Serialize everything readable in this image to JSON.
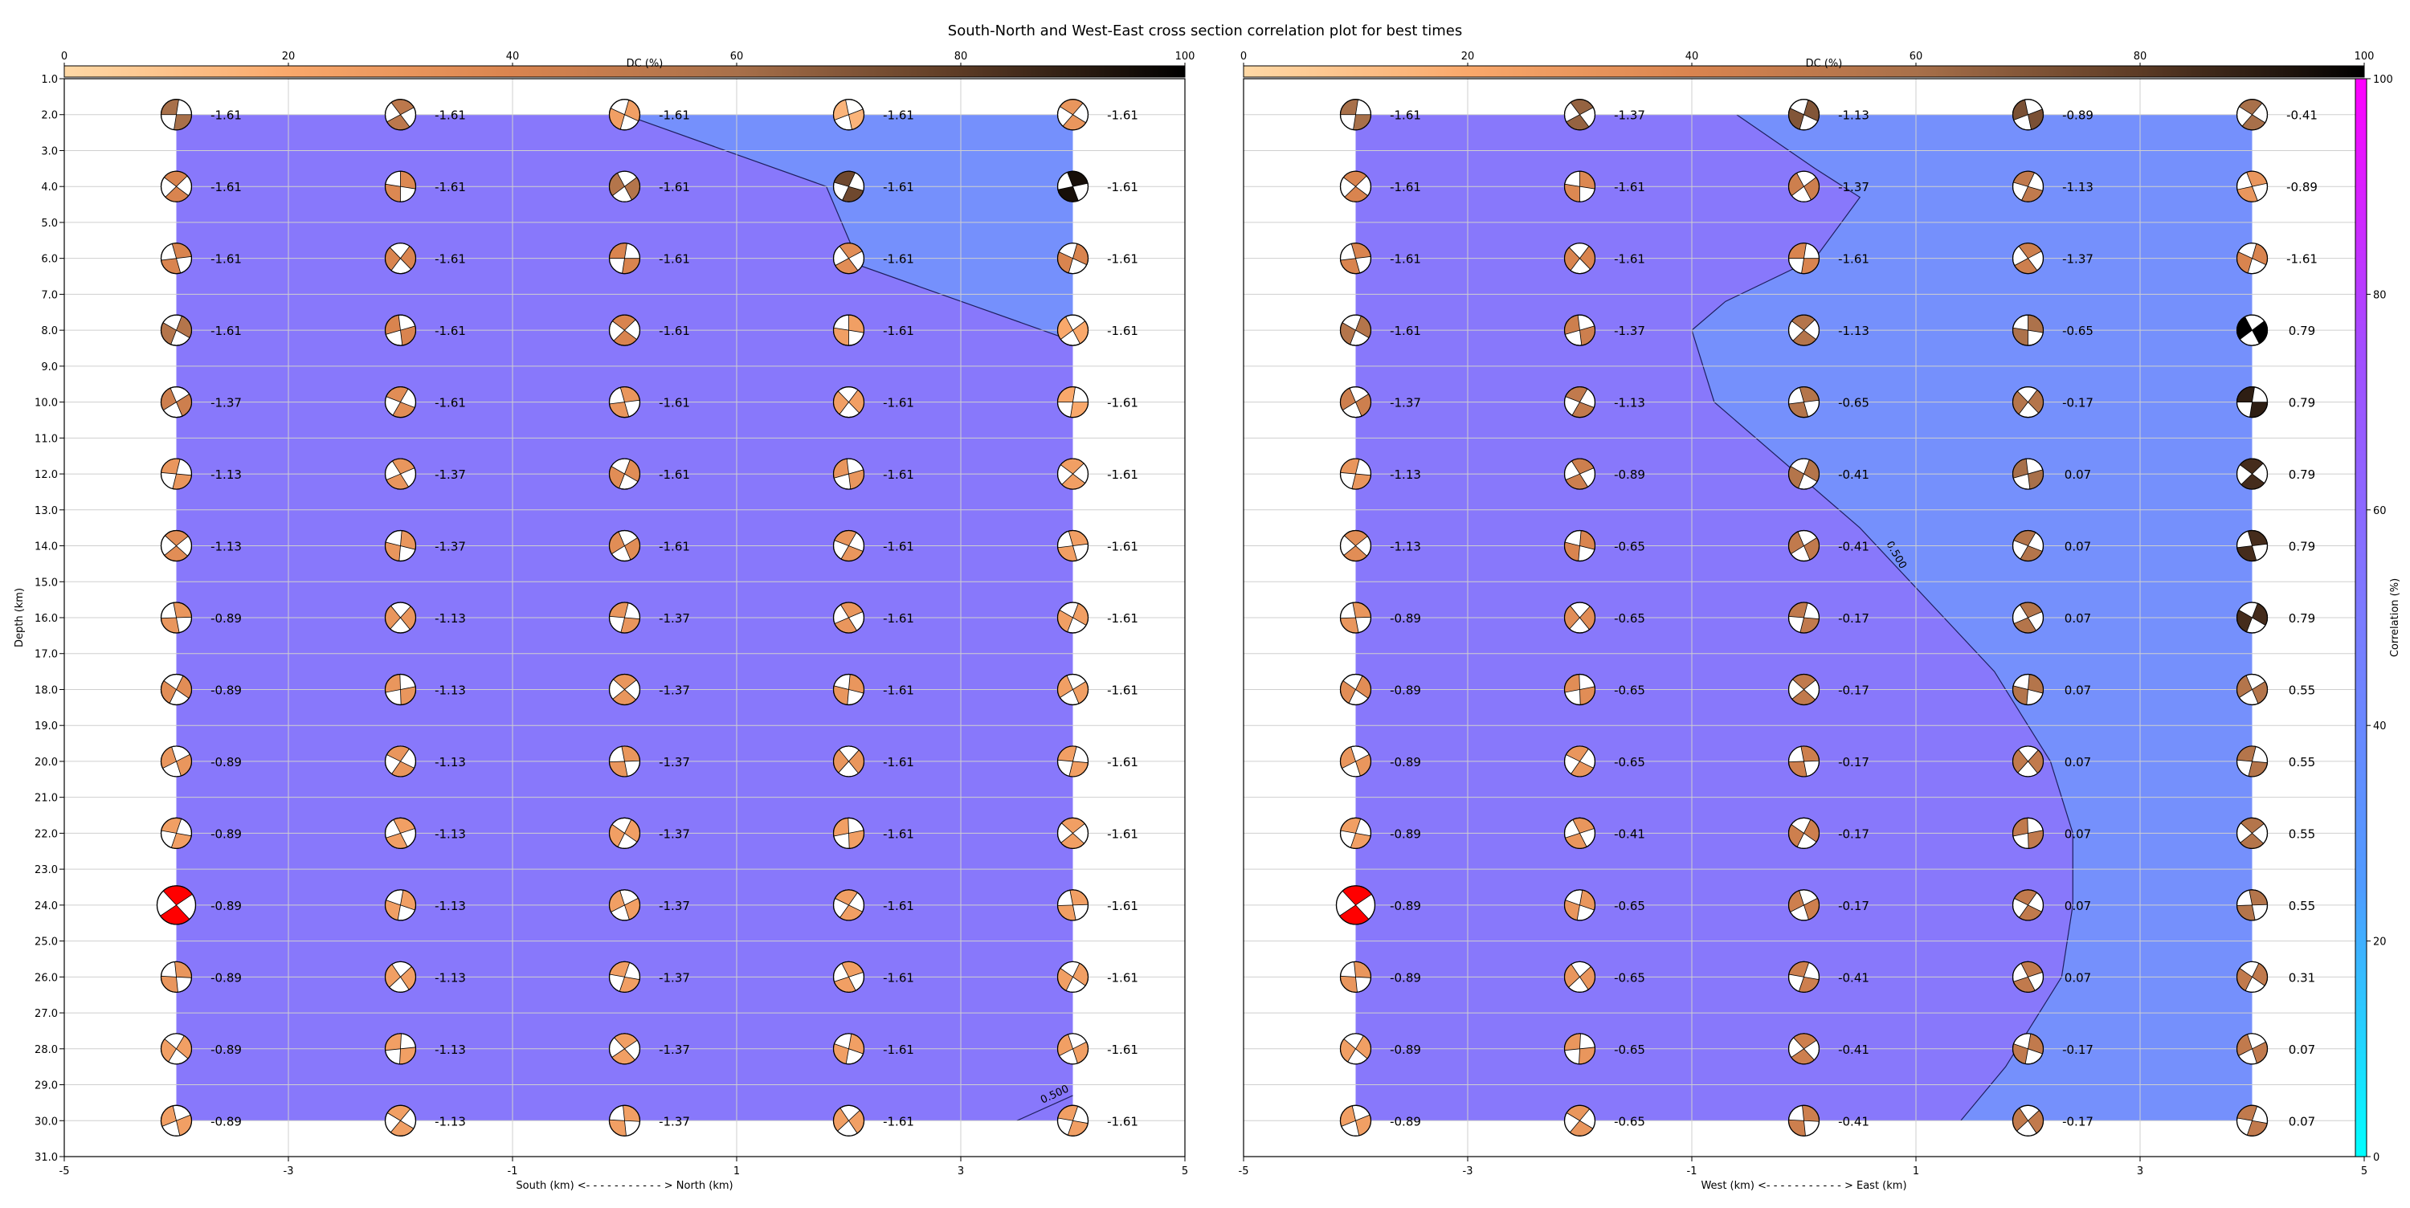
{
  "figure": {
    "title": "South-North and West-East cross section correlation plot for best times"
  },
  "colors": {
    "plane": "#ffffff",
    "dc_colormap": [
      "#ffd9a6",
      "#f9a86b",
      "#d9844f",
      "#a8704a",
      "#5c3b25",
      "#000000"
    ],
    "corr_colormap": [
      "#00ffff",
      "#4f9bff",
      "#7b7bff",
      "#a34dff",
      "#ff00ff"
    ],
    "best_solution": "#ff0000",
    "contour_line": "#1f1f5f",
    "grid": "#cfcfcf"
  },
  "chart_data": [
    {
      "type": "heatmap",
      "name": "south-north",
      "xlabel": "South (km) <- - - - - - - - - - - > North (km)",
      "ylabel": "Depth (km)",
      "xlim": [
        -5,
        5
      ],
      "ylim": [
        31,
        1
      ],
      "x_ticks": [
        "-5",
        "-3",
        "-1",
        "1",
        "3",
        "5"
      ],
      "y_ticks": [
        "1.0",
        "2.0",
        "3.0",
        "4.0",
        "5.0",
        "6.0",
        "7.0",
        "8.0",
        "9.0",
        "10.0",
        "11.0",
        "12.0",
        "13.0",
        "14.0",
        "15.0",
        "16.0",
        "17.0",
        "18.0",
        "19.0",
        "20.0",
        "21.0",
        "22.0",
        "23.0",
        "24.0",
        "25.0",
        "26.0",
        "27.0",
        "28.0",
        "29.0",
        "30.0",
        "31.0"
      ],
      "dc_colorbar": {
        "label": "DC (%)",
        "ticks": [
          "0",
          "20",
          "40",
          "60",
          "80",
          "100"
        ]
      },
      "contour_label": "0.500",
      "x": [
        -4,
        -2,
        0,
        2,
        4
      ],
      "depths": [
        2,
        4,
        6,
        8,
        10,
        12,
        14,
        16,
        18,
        20,
        22,
        24,
        26,
        28,
        30
      ],
      "time_shifts": [
        [
          "-1.61",
          "-1.61",
          "-1.61",
          "-1.61",
          "-1.61"
        ],
        [
          "-1.61",
          "-1.61",
          "-1.61",
          "-1.61",
          "-1.61"
        ],
        [
          "-1.61",
          "-1.61",
          "-1.61",
          "-1.61",
          "-1.61"
        ],
        [
          "-1.61",
          "-1.61",
          "-1.61",
          "-1.61",
          "-1.61"
        ],
        [
          "-1.37",
          "-1.61",
          "-1.61",
          "-1.61",
          "-1.61"
        ],
        [
          "-1.13",
          "-1.37",
          "-1.61",
          "-1.61",
          "-1.61"
        ],
        [
          "-1.13",
          "-1.37",
          "-1.61",
          "-1.61",
          "-1.61"
        ],
        [
          "-0.89",
          "-1.13",
          "-1.37",
          "-1.61",
          "-1.61"
        ],
        [
          "-0.89",
          "-1.13",
          "-1.37",
          "-1.61",
          "-1.61"
        ],
        [
          "-0.89",
          "-1.13",
          "-1.37",
          "-1.61",
          "-1.61"
        ],
        [
          "-0.89",
          "-1.13",
          "-1.37",
          "-1.61",
          "-1.61"
        ],
        [
          "-0.89",
          "-1.13",
          "-1.37",
          "-1.61",
          "-1.61"
        ],
        [
          "-0.89",
          "-1.13",
          "-1.37",
          "-1.61",
          "-1.61"
        ],
        [
          "-0.89",
          "-1.13",
          "-1.37",
          "-1.61",
          "-1.61"
        ],
        [
          "-0.89",
          "-1.13",
          "-1.37",
          "-1.61",
          "-1.61"
        ]
      ],
      "dc_percent": [
        [
          60,
          52,
          25,
          15,
          30
        ],
        [
          40,
          38,
          55,
          75,
          95
        ],
        [
          40,
          40,
          40,
          35,
          40
        ],
        [
          55,
          40,
          40,
          25,
          20
        ],
        [
          45,
          35,
          30,
          25,
          20
        ],
        [
          30,
          30,
          35,
          30,
          25
        ],
        [
          35,
          30,
          35,
          30,
          25
        ],
        [
          30,
          30,
          30,
          30,
          25
        ],
        [
          35,
          30,
          30,
          30,
          25
        ],
        [
          30,
          30,
          30,
          30,
          25
        ],
        [
          25,
          25,
          25,
          25,
          25
        ],
        [
          100,
          25,
          25,
          25,
          25
        ],
        [
          30,
          25,
          25,
          25,
          25
        ],
        [
          25,
          25,
          25,
          25,
          25
        ],
        [
          25,
          25,
          25,
          25,
          25
        ]
      ],
      "correlation_contour_0_5": [
        [
          0.0,
          2
        ],
        [
          1.8,
          4
        ],
        [
          2.1,
          6.2
        ],
        [
          4.0,
          8.3
        ]
      ],
      "correlation_contour_0_5_lower": [
        [
          3.5,
          30
        ],
        [
          4.0,
          29.3
        ]
      ],
      "best_solutions": [
        [
          -4,
          24
        ]
      ]
    },
    {
      "type": "heatmap",
      "name": "west-east",
      "xlabel": "West (km) <- - - - - - - - - - - > East (km)",
      "ylabel": "",
      "xlim": [
        -5,
        5
      ],
      "ylim": [
        31,
        1
      ],
      "x_ticks": [
        "-5",
        "-3",
        "-1",
        "1",
        "3",
        "5"
      ],
      "y_ticks": [],
      "dc_colorbar": {
        "label": "DC (%)",
        "ticks": [
          "0",
          "20",
          "40",
          "60",
          "80",
          "100"
        ]
      },
      "corr_colorbar": {
        "label": "Correlation (%)",
        "ticks": [
          "0",
          "20",
          "40",
          "60",
          "80",
          "100"
        ]
      },
      "contour_label": "0.500",
      "x": [
        -4,
        -2,
        0,
        2,
        4
      ],
      "depths": [
        2,
        4,
        6,
        8,
        10,
        12,
        14,
        16,
        18,
        20,
        22,
        24,
        26,
        28,
        30
      ],
      "time_shifts": [
        [
          "-1.61",
          "-1.37",
          "-1.13",
          "-0.89",
          "-0.41"
        ],
        [
          "-1.61",
          "-1.61",
          "-1.37",
          "-1.13",
          "-0.89"
        ],
        [
          "-1.61",
          "-1.61",
          "-1.61",
          "-1.37",
          "-1.61"
        ],
        [
          "-1.61",
          "-1.37",
          "-1.13",
          "-0.65",
          "0.79"
        ],
        [
          "-1.37",
          "-1.13",
          "-0.65",
          "-0.17",
          "0.79"
        ],
        [
          "-1.13",
          "-0.89",
          "-0.41",
          "0.07",
          "0.79"
        ],
        [
          "-1.13",
          "-0.65",
          "-0.41",
          "0.07",
          "0.79"
        ],
        [
          "-0.89",
          "-0.65",
          "-0.17",
          "0.07",
          "0.79"
        ],
        [
          "-0.89",
          "-0.65",
          "-0.17",
          "0.07",
          "0.55"
        ],
        [
          "-0.89",
          "-0.65",
          "-0.17",
          "0.07",
          "0.55"
        ],
        [
          "-0.89",
          "-0.41",
          "-0.17",
          "0.07",
          "0.55"
        ],
        [
          "-0.89",
          "-0.65",
          "-0.17",
          "0.07",
          "0.55"
        ],
        [
          "-0.89",
          "-0.65",
          "-0.41",
          "0.07",
          "0.31"
        ],
        [
          "-0.89",
          "-0.65",
          "-0.41",
          "-0.17",
          "0.07"
        ],
        [
          "-0.89",
          "-0.65",
          "-0.41",
          "-0.17",
          "0.07"
        ]
      ],
      "dc_percent": [
        [
          60,
          65,
          70,
          72,
          60
        ],
        [
          40,
          38,
          45,
          50,
          30
        ],
        [
          40,
          40,
          40,
          45,
          40
        ],
        [
          55,
          45,
          55,
          58,
          100
        ],
        [
          45,
          50,
          55,
          55,
          90
        ],
        [
          30,
          45,
          55,
          60,
          85
        ],
        [
          35,
          40,
          50,
          55,
          85
        ],
        [
          30,
          35,
          50,
          55,
          85
        ],
        [
          35,
          35,
          50,
          55,
          55
        ],
        [
          30,
          30,
          45,
          50,
          55
        ],
        [
          25,
          30,
          45,
          50,
          55
        ],
        [
          100,
          30,
          45,
          50,
          55
        ],
        [
          30,
          30,
          45,
          50,
          50
        ],
        [
          25,
          30,
          45,
          50,
          50
        ],
        [
          25,
          30,
          45,
          50,
          50
        ]
      ],
      "correlation_contour_0_5": [
        [
          -0.6,
          2
        ],
        [
          0.1,
          3.5
        ],
        [
          0.5,
          4.3
        ],
        [
          0.1,
          6
        ],
        [
          -0.7,
          7.2
        ],
        [
          -1.0,
          8
        ],
        [
          -0.8,
          10
        ],
        [
          0.5,
          13.5
        ],
        [
          1.7,
          17.5
        ],
        [
          2.2,
          20
        ],
        [
          2.4,
          22
        ],
        [
          2.4,
          24
        ],
        [
          2.3,
          26
        ],
        [
          1.8,
          28.5
        ],
        [
          1.4,
          30
        ]
      ],
      "best_solutions": [
        [
          -4,
          24
        ]
      ]
    }
  ]
}
